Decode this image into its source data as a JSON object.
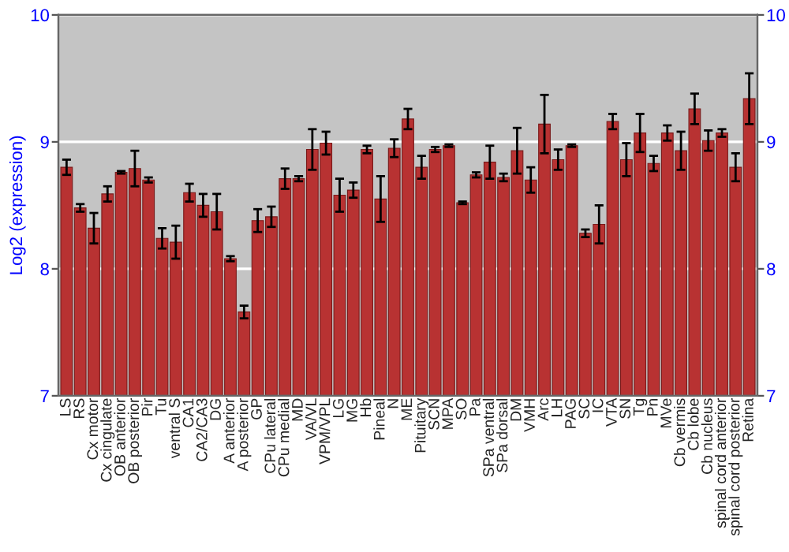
{
  "chart_data": {
    "type": "bar",
    "ylabel": "Log2 (expression)",
    "categories": [
      "LS",
      "RS",
      "Cx motor",
      "Cx cingulate",
      "OB anterior",
      "OB posterior",
      "Pir",
      "Tu",
      "ventral S",
      "CA1",
      "CA2/CA3",
      "DG",
      "A anterior",
      "A posterior",
      "GP",
      "CPu lateral",
      "CPu medial",
      "MD",
      "VA/VL",
      "VPM/VPL",
      "LG",
      "MG",
      "Hb",
      "Pineal",
      "N",
      "ME",
      "Pituitary",
      "SCN",
      "MPA",
      "SO",
      "Pa",
      "SPa ventral",
      "SPa dorsal",
      "DM",
      "VMH",
      "Arc",
      "LH",
      "PAG",
      "SC",
      "IC",
      "VTA",
      "SN",
      "Tg",
      "Pn",
      "MVe",
      "Cb vermis",
      "Cb lobe",
      "Cb nucleus",
      "spinal cord anterior",
      "spinal cord posterior",
      "Retina"
    ],
    "values": [
      8.8,
      8.48,
      8.32,
      8.59,
      8.76,
      8.79,
      8.7,
      8.24,
      8.21,
      8.6,
      8.5,
      8.45,
      8.08,
      7.66,
      8.38,
      8.41,
      8.71,
      8.71,
      8.94,
      8.99,
      8.58,
      8.62,
      8.94,
      8.55,
      8.95,
      9.18,
      8.8,
      8.94,
      8.97,
      8.52,
      8.74,
      8.84,
      8.72,
      8.93,
      8.7,
      9.14,
      8.86,
      8.97,
      8.28,
      8.35,
      9.16,
      8.86,
      9.07,
      8.83,
      9.07,
      8.93,
      9.26,
      9.01,
      9.07,
      8.8,
      9.34
    ],
    "errors": [
      0.06,
      0.03,
      0.12,
      0.06,
      0.01,
      0.14,
      0.02,
      0.08,
      0.13,
      0.07,
      0.09,
      0.14,
      0.02,
      0.05,
      0.09,
      0.08,
      0.08,
      0.02,
      0.16,
      0.09,
      0.13,
      0.06,
      0.03,
      0.18,
      0.07,
      0.08,
      0.09,
      0.02,
      0.01,
      0.01,
      0.02,
      0.13,
      0.03,
      0.18,
      0.1,
      0.23,
      0.08,
      0.01,
      0.03,
      0.15,
      0.06,
      0.13,
      0.15,
      0.06,
      0.06,
      0.15,
      0.12,
      0.08,
      0.03,
      0.11,
      0.2
    ],
    "color": "#b83232",
    "ylim": [
      7,
      10
    ],
    "yticks": [
      7,
      8,
      9,
      10
    ],
    "y2lim": [
      7,
      10
    ],
    "y2ticks": [
      7,
      8,
      9,
      10
    ],
    "grid": "y"
  }
}
